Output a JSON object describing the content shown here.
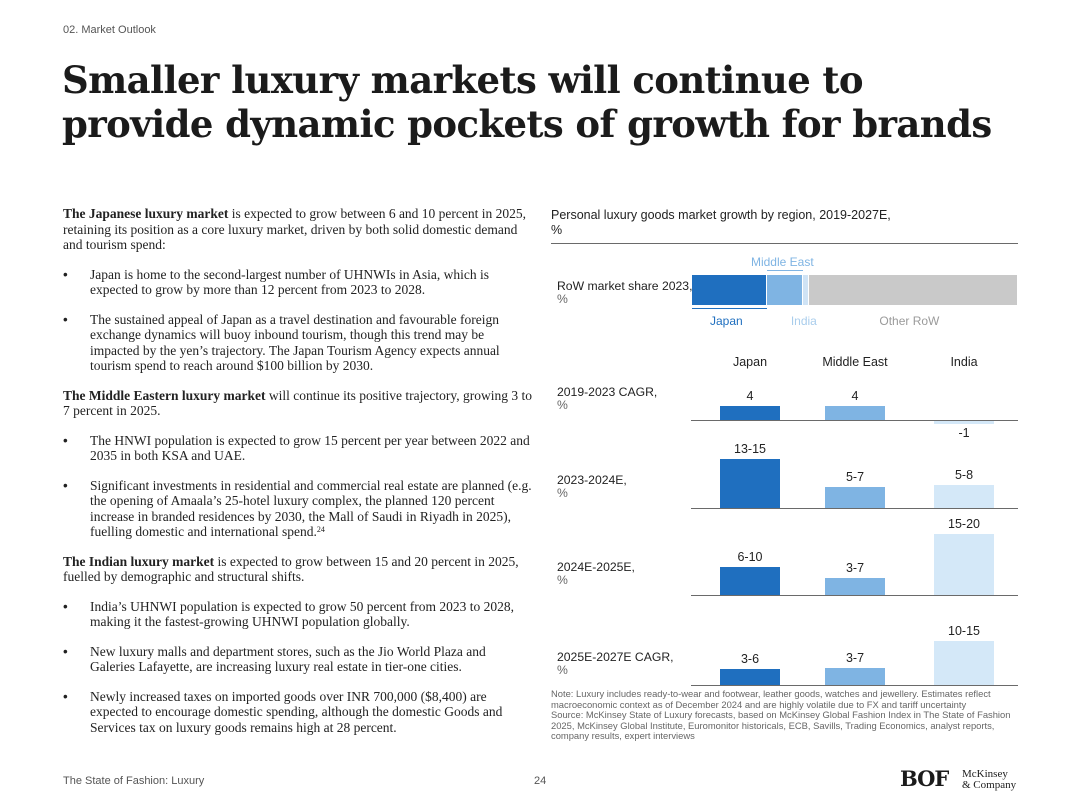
{
  "section": "02. Market Outlook",
  "title": "Smaller luxury markets will continue to provide dynamic pockets of growth for brands",
  "body": {
    "japan_lead_bold": "The Japanese luxury market",
    "japan_lead_rest": " is expected to grow between 6 and 10 percent in 2025, retaining its position as a core luxury market, driven by both solid domestic demand and tourism spend:",
    "japan_bullets": [
      "Japan is home to the second-largest number of UHNWIs in Asia, which is expected to grow by more than 12 percent from 2023 to 2028.",
      "The sustained appeal of Japan as a travel destination and favourable foreign exchange dynamics will buoy inbound tourism, though this trend may be impacted by the yen’s trajectory. The Japan Tourism Agency expects annual tourism spend to reach around $100 billion by 2030."
    ],
    "me_lead_bold": "The Middle Eastern luxury market",
    "me_lead_rest": " will continue its positive trajectory, growing 3 to 7 percent in 2025.",
    "me_bullets": [
      "The HNWI population is expected to grow 15 percent per year between 2022 and 2035 in both KSA and UAE.",
      "Significant investments in residential and commercial real estate are planned (e.g. the opening of Amaala’s 25-hotel luxury complex, the planned 120 percent increase in branded residences by 2030, the Mall of Saudi in Riyadh in 2025), fuelling domestic and international spend."
    ],
    "me_footnote": "24",
    "india_lead_bold": "The Indian luxury market",
    "india_lead_rest": " is expected to grow between 15 and 20 percent in 2025, fuelled by demographic and structural shifts.",
    "india_bullets": [
      "India’s UHNWI population is expected to grow 50 percent from 2023 to 2028, making it the fastest-growing UHNWI population globally.",
      "New luxury malls and department stores, such as the Jio World Plaza and Galeries Lafayette, are increasing luxury real estate in tier-one cities.",
      "Newly increased taxes on imported goods over INR 700,000 ($8,400) are expected to encourage domestic spending, although the domestic Goods and Services tax on luxury goods remains high at 28 percent."
    ]
  },
  "chart_data": {
    "type": "bar",
    "title": "Personal luxury goods market growth by region, 2019-2027E,",
    "title_unit": "%",
    "share": {
      "label": "RoW market share 2023,",
      "unit": "%",
      "segments": [
        {
          "name": "Japan",
          "share": 0.23,
          "color": "#1f6fbf"
        },
        {
          "name": "Middle East",
          "share": 0.11,
          "color": "#7fb4e3"
        },
        {
          "name": "India",
          "share": 0.02,
          "color": "#cfe3f5"
        },
        {
          "name": "Other RoW",
          "share": 0.64,
          "color": "#c9c9c9"
        }
      ]
    },
    "categories": [
      "Japan",
      "Middle East",
      "India"
    ],
    "colors": [
      "#1f6fbf",
      "#7fb4e3",
      "#d4e8f8"
    ],
    "rows": [
      {
        "label": "2019-2023 CAGR,",
        "unit": "%",
        "values": [
          4,
          4,
          -1
        ],
        "labels": [
          "4",
          "4",
          "-1"
        ]
      },
      {
        "label": "2023-2024E,",
        "unit": "%",
        "values": [
          14,
          6,
          6.5
        ],
        "labels": [
          "13-15",
          "5-7",
          "5-8"
        ]
      },
      {
        "label": "2024E-2025E,",
        "unit": "%",
        "values": [
          8,
          5,
          17.5
        ],
        "labels": [
          "6-10",
          "3-7",
          "15-20"
        ]
      },
      {
        "label": "2025E-2027E CAGR,",
        "unit": "%",
        "values": [
          4.5,
          5,
          12.5
        ],
        "labels": [
          "3-6",
          "3-7",
          "10-15"
        ]
      }
    ]
  },
  "notes": [
    "Note: Luxury includes ready-to-wear and footwear, leather goods, watches and jewellery. Estimates reflect macroeconomic context as of December 2024 and are highly volatile due to FX and tariff uncertainty",
    "Source: McKinsey State of Luxury forecasts, based on McKinsey Global Fashion Index in The State of Fashion 2025, McKinsey Global Institute, Euromonitor historicals, ECB, Savills, Trading Economics, analyst reports, company results, expert interviews"
  ],
  "footer": {
    "publication": "The State of Fashion: Luxury",
    "page": "24",
    "logo_bof": "BOF",
    "logo_mckinsey_line1": "McKinsey",
    "logo_mckinsey_line2": "& Company"
  }
}
